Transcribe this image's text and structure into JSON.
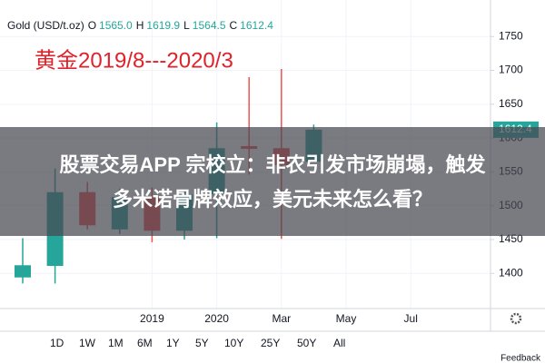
{
  "chart_data": {
    "type": "candlestick",
    "header": {
      "symbol": "Gold (USD/t.oz)",
      "fields": [
        {
          "key": "O",
          "value": "1565.0"
        },
        {
          "key": "H",
          "value": "1619.9"
        },
        {
          "key": "L",
          "value": "1564.5"
        },
        {
          "key": "C",
          "value": "1612.4"
        }
      ]
    },
    "title": "黄金2019/8---2020/3",
    "banner": [
      "股票交易APP 宗校立：非农引发市场崩塌，触发",
      "多米诺骨牌效应，美元未来怎么看？"
    ],
    "up_color": "#26a69a",
    "down_color": "#ef5350",
    "candles": [
      {
        "open": 1394,
        "high": 1452,
        "low": 1385,
        "close": 1412
      },
      {
        "open": 1411,
        "high": 1555,
        "low": 1385,
        "close": 1520
      },
      {
        "open": 1520,
        "high": 1535,
        "low": 1465,
        "close": 1471
      },
      {
        "open": 1465,
        "high": 1525,
        "low": 1458,
        "close": 1513
      },
      {
        "open": 1513,
        "high": 1527,
        "low": 1446,
        "close": 1463
      },
      {
        "open": 1463,
        "high": 1522,
        "low": 1450,
        "close": 1517
      },
      {
        "open": 1517,
        "high": 1623,
        "low": 1452,
        "close": 1585
      },
      {
        "open": 1588,
        "high": 1690,
        "low": 1546,
        "close": 1584
      },
      {
        "open": 1585,
        "high": 1702,
        "low": 1451,
        "close": 1560
      },
      {
        "open": 1565,
        "high": 1619.9,
        "low": 1564.5,
        "close": 1612.4
      }
    ],
    "xtick_labels": [
      "2019",
      "2020",
      "Mar",
      "May",
      "Jul"
    ],
    "ylim": [
      1348,
      1804
    ],
    "yticks": [
      1400,
      1450,
      1500,
      1550,
      1600,
      1650,
      1700,
      1750
    ],
    "grid": true,
    "ranges": [
      "1D",
      "1W",
      "1M",
      "6M",
      "1Y",
      "5Y",
      "10Y",
      "25Y",
      "50Y",
      "All"
    ],
    "feedback": "Feedback"
  }
}
